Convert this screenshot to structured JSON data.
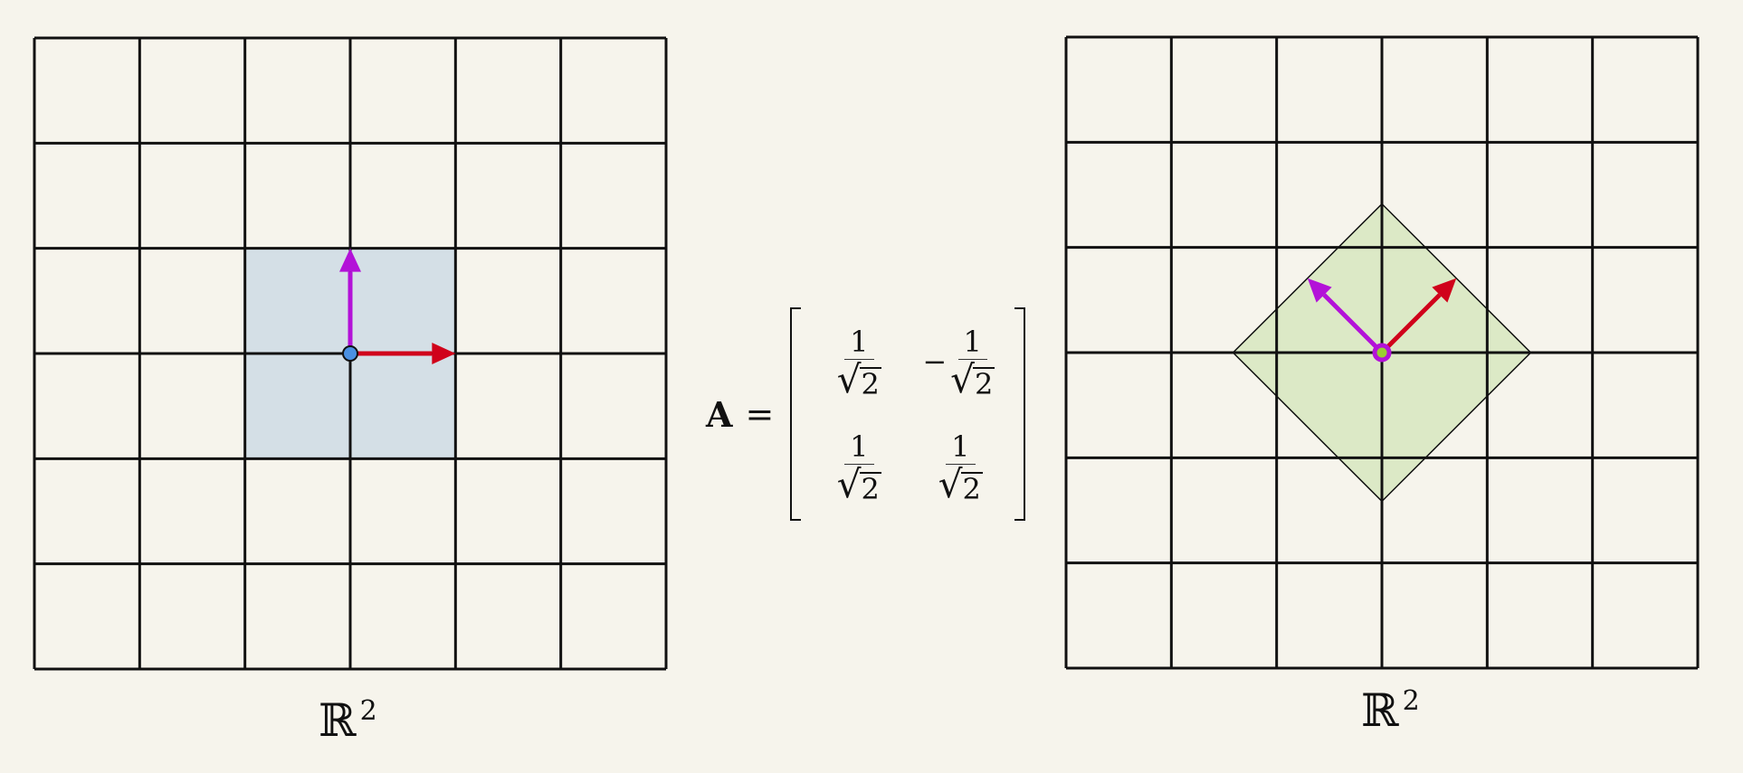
{
  "left_panel": {
    "label_base": "ℝ",
    "label_exp": "2",
    "grid": {
      "cells": 6,
      "range": [
        -3,
        3
      ]
    },
    "square": {
      "corners": [
        [
          -1,
          -1
        ],
        [
          1,
          -1
        ],
        [
          1,
          1
        ],
        [
          -1,
          1
        ]
      ],
      "fill": "#d4dfe6"
    },
    "vectors": [
      {
        "name": "e1",
        "from": [
          0,
          0
        ],
        "to": [
          1,
          0
        ],
        "color": "#d0021b"
      },
      {
        "name": "e2",
        "from": [
          0,
          0
        ],
        "to": [
          0,
          1
        ],
        "color": "#b312d8"
      }
    ],
    "origin_dot_color": "#4a90e2"
  },
  "right_panel": {
    "label_base": "ℝ",
    "label_exp": "2",
    "grid": {
      "cells": 6,
      "range": [
        -3,
        3
      ]
    },
    "diamond": {
      "corners": [
        [
          1.414,
          0
        ],
        [
          0,
          1.414
        ],
        [
          -1.414,
          0
        ],
        [
          0,
          -1.414
        ]
      ],
      "fill": "#dce9c6"
    },
    "vectors": [
      {
        "name": "Ae1",
        "from": [
          0,
          0
        ],
        "to": [
          0.707,
          0.707
        ],
        "color": "#d0021b"
      },
      {
        "name": "Ae2",
        "from": [
          0,
          0
        ],
        "to": [
          -0.707,
          0.707
        ],
        "color": "#b312d8"
      }
    ],
    "origin_ring_color": "#b312d8",
    "origin_fill_color": "#9acd32"
  },
  "equation": {
    "lhs": "A",
    "equals": "=",
    "entries": [
      {
        "sign": "",
        "numerator": "1",
        "radical": "√",
        "radicand": "2"
      },
      {
        "sign": "−",
        "numerator": "1",
        "radical": "√",
        "radicand": "2"
      },
      {
        "sign": "",
        "numerator": "1",
        "radical": "√",
        "radicand": "2"
      },
      {
        "sign": "",
        "numerator": "1",
        "radical": "√",
        "radicand": "2"
      }
    ]
  }
}
